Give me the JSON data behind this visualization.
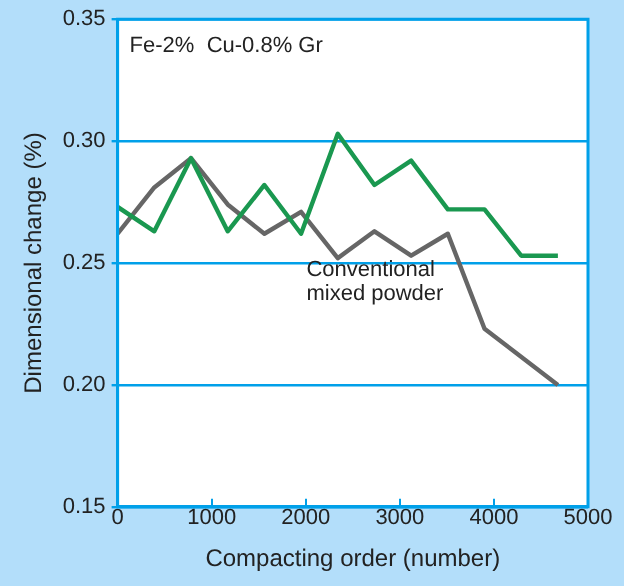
{
  "chart_data": {
    "type": "line",
    "xlabel": "Compacting order (number)",
    "ylabel": "Dimensional change (%)",
    "annotations": [
      "Fe-2%  Cu-0.8% Gr"
    ],
    "series": [
      {
        "color": "#1a9850",
        "x": [
          0,
          390,
          780,
          1170,
          1560,
          1950,
          2340,
          2730,
          3120,
          3510,
          3900,
          4290,
          4680
        ],
        "values": [
          0.273,
          0.263,
          0.293,
          0.263,
          0.282,
          0.262,
          0.303,
          0.282,
          0.292,
          0.272,
          0.272,
          0.253,
          0.253
        ]
      },
      {
        "name": "Conventional mixed powder",
        "color": "#666666",
        "x": [
          0,
          390,
          780,
          1170,
          1560,
          1950,
          2340,
          2730,
          3120,
          3510,
          3900,
          4680
        ],
        "values": [
          0.262,
          0.281,
          0.293,
          0.274,
          0.262,
          0.271,
          0.252,
          0.263,
          0.253,
          0.262,
          0.223,
          0.2
        ]
      }
    ],
    "xlim": [
      0,
      5000
    ],
    "xticks": [
      0,
      1000,
      2000,
      3000,
      4000,
      5000
    ],
    "ylim": [
      0.15,
      0.35
    ],
    "yticks": [
      {
        "value": 0.15,
        "label": "0.15"
      },
      {
        "value": 0.2,
        "label": "0.20"
      },
      {
        "value": 0.25,
        "label": "0.25"
      },
      {
        "value": 0.3,
        "label": "0.30"
      },
      {
        "value": 0.35,
        "label": "0.35"
      }
    ],
    "grid": "y",
    "legend": false,
    "marker": "none",
    "line_style": "solid"
  }
}
